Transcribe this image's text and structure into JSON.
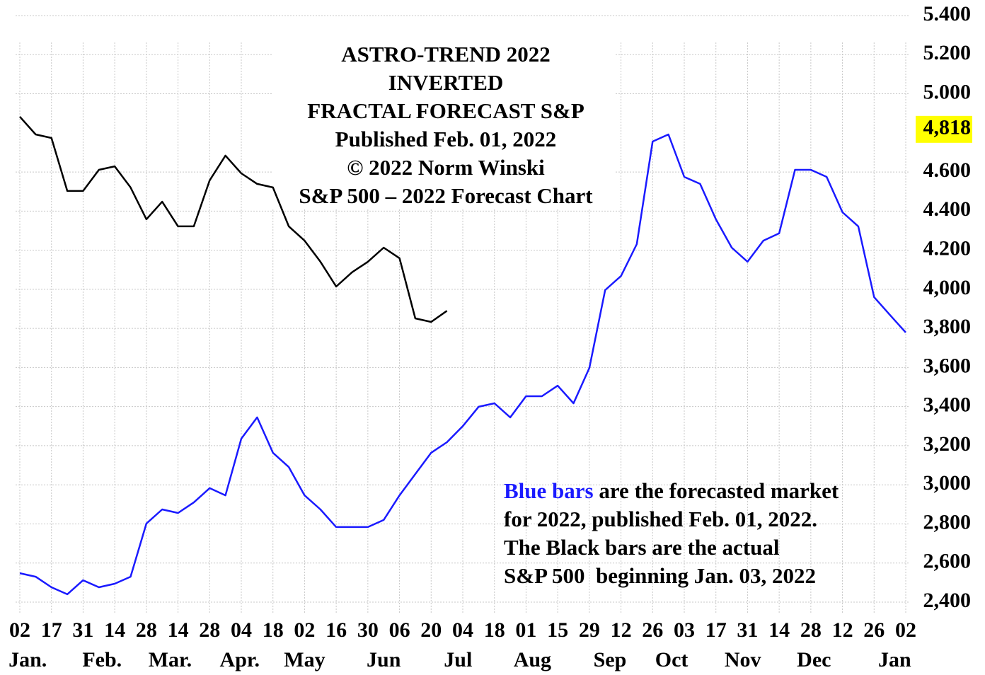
{
  "chart_data": {
    "type": "line",
    "title_lines": [
      "ASTRO-TREND 2022",
      "INVERTED",
      "FRACTAL FORECAST S&P",
      "Published Feb. 01, 2022",
      "© 2022 Norm Winski",
      "S&P 500 – 2022 Forecast Chart"
    ],
    "annotation": {
      "first_line": [
        {
          "text": "Blue bars",
          "color": "#1a1aff"
        },
        {
          "text": " are the forecasted market",
          "color": "#000000"
        }
      ],
      "lines": [
        "for 2022, published Feb. 01, 2022.",
        "The Black bars are the actual",
        "S&P 500  beginning Jan. 03, 2022"
      ]
    },
    "x": [
      0,
      1,
      2,
      3,
      4,
      5,
      6,
      7,
      8,
      9,
      10,
      11,
      12,
      13,
      14,
      15,
      16,
      17,
      18,
      19,
      20,
      21,
      22,
      23,
      24,
      25,
      26,
      27,
      28,
      29,
      30,
      31,
      32,
      33,
      34,
      35,
      36,
      37,
      38,
      39,
      40,
      41,
      42,
      43,
      44,
      45,
      46,
      47,
      48,
      49,
      50,
      51,
      52,
      53,
      54,
      55,
      56
    ],
    "xlim": [
      0,
      56
    ],
    "xticks": [
      {
        "value": 0,
        "label": "02"
      },
      {
        "value": 2,
        "label": "17"
      },
      {
        "value": 4,
        "label": "31"
      },
      {
        "value": 6,
        "label": "14"
      },
      {
        "value": 8,
        "label": "28"
      },
      {
        "value": 10,
        "label": "14"
      },
      {
        "value": 12,
        "label": "28"
      },
      {
        "value": 14,
        "label": "04"
      },
      {
        "value": 16,
        "label": "18"
      },
      {
        "value": 18,
        "label": "02"
      },
      {
        "value": 20,
        "label": "16"
      },
      {
        "value": 22,
        "label": "30"
      },
      {
        "value": 24,
        "label": "06"
      },
      {
        "value": 26,
        "label": "20"
      },
      {
        "value": 28,
        "label": "04"
      },
      {
        "value": 30,
        "label": "18"
      },
      {
        "value": 32,
        "label": "01"
      },
      {
        "value": 34,
        "label": "15"
      },
      {
        "value": 36,
        "label": "29"
      },
      {
        "value": 38,
        "label": "12"
      },
      {
        "value": 40,
        "label": "26"
      },
      {
        "value": 42,
        "label": "03"
      },
      {
        "value": 44,
        "label": "17"
      },
      {
        "value": 46,
        "label": "31"
      },
      {
        "value": 48,
        "label": "14"
      },
      {
        "value": 50,
        "label": "28"
      },
      {
        "value": 52,
        "label": "12"
      },
      {
        "value": 54,
        "label": "26"
      },
      {
        "value": 56,
        "label": "02"
      }
    ],
    "month_labels": [
      {
        "value": 0.5,
        "label": "Jan."
      },
      {
        "value": 5.2,
        "label": "Feb."
      },
      {
        "value": 9.5,
        "label": "Mar."
      },
      {
        "value": 13.9,
        "label": "Apr."
      },
      {
        "value": 18,
        "label": "May"
      },
      {
        "value": 23,
        "label": "Jun"
      },
      {
        "value": 27.7,
        "label": "Jul"
      },
      {
        "value": 32.4,
        "label": "Aug"
      },
      {
        "value": 37.3,
        "label": "Sep"
      },
      {
        "value": 41.2,
        "label": "Oct"
      },
      {
        "value": 45.7,
        "label": "Nov"
      },
      {
        "value": 50.2,
        "label": "Dec"
      },
      {
        "value": 55.3,
        "label": "Jan"
      }
    ],
    "ylim": [
      2400,
      5400
    ],
    "yticks": [
      {
        "value": 5400,
        "label": "5.400"
      },
      {
        "value": 5200,
        "label": "5.200"
      },
      {
        "value": 5000,
        "label": "5.000"
      },
      {
        "value": 4600,
        "label": "4.600"
      },
      {
        "value": 4400,
        "label": "4.400"
      },
      {
        "value": 4200,
        "label": "4.200"
      },
      {
        "value": 4000,
        "label": "4,000"
      },
      {
        "value": 3800,
        "label": "3,800"
      },
      {
        "value": 3600,
        "label": "3,600"
      },
      {
        "value": 3400,
        "label": "3,400"
      },
      {
        "value": 3200,
        "label": "3,200"
      },
      {
        "value": 3000,
        "label": "3,000"
      },
      {
        "value": 2800,
        "label": "2,800"
      },
      {
        "value": 2600,
        "label": "2,600"
      },
      {
        "value": 2400,
        "label": "2,400"
      }
    ],
    "marker": {
      "value": 4818,
      "label": "4,818",
      "color": "#ffff00"
    },
    "grid": true,
    "series": [
      {
        "color": "#1a1aff",
        "values": [
          2548,
          2530,
          2476,
          2440,
          2512,
          2476,
          2494,
          2530,
          2802,
          2874,
          2856,
          2910,
          2983,
          2946,
          3236,
          3345,
          3164,
          3091,
          2946,
          2874,
          2784,
          2784,
          2784,
          2820,
          2946,
          3055,
          3164,
          3218,
          3300,
          3399,
          3417,
          3345,
          3453,
          3453,
          3507,
          3417,
          3598,
          3996,
          4068,
          4231,
          4756,
          4792,
          4575,
          4539,
          4358,
          4213,
          4141,
          4249,
          4286,
          4611,
          4611,
          4575,
          4394,
          4322,
          3960,
          3869,
          3779
        ]
      },
      {
        "color": "#000000",
        "values": [
          4883,
          4792,
          4774,
          4503,
          4503,
          4611,
          4629,
          4521,
          4358,
          4448,
          4322,
          4322,
          4557,
          4684,
          4593,
          4539,
          4521,
          4322,
          4249,
          4141,
          4014,
          4087,
          4141,
          4213,
          4159,
          3851,
          3833,
          3890,
          null,
          null,
          null,
          null,
          null,
          null,
          null,
          null,
          null,
          null,
          null,
          null,
          null,
          null,
          null,
          null,
          null,
          null,
          null,
          null,
          null,
          null,
          null,
          null,
          null,
          null,
          null,
          null,
          null
        ]
      }
    ]
  }
}
